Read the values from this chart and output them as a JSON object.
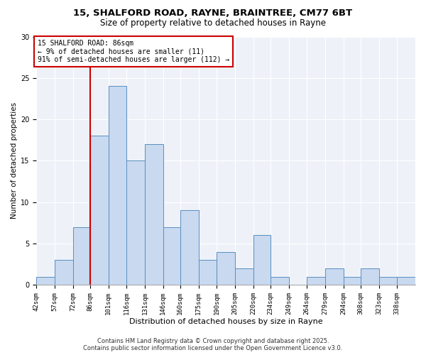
{
  "title1": "15, SHALFORD ROAD, RAYNE, BRAINTREE, CM77 6BT",
  "title2": "Size of property relative to detached houses in Rayne",
  "xlabel": "Distribution of detached houses by size in Rayne",
  "ylabel": "Number of detached properties",
  "bin_labels": [
    "42sqm",
    "57sqm",
    "72sqm",
    "86sqm",
    "101sqm",
    "116sqm",
    "131sqm",
    "146sqm",
    "160sqm",
    "175sqm",
    "190sqm",
    "205sqm",
    "220sqm",
    "234sqm",
    "249sqm",
    "264sqm",
    "279sqm",
    "294sqm",
    "308sqm",
    "323sqm",
    "338sqm"
  ],
  "bin_edges": [
    42,
    57,
    72,
    86,
    101,
    116,
    131,
    146,
    160,
    175,
    190,
    205,
    220,
    234,
    249,
    264,
    279,
    294,
    308,
    323,
    338,
    353
  ],
  "counts": [
    1,
    3,
    7,
    18,
    24,
    15,
    17,
    7,
    9,
    3,
    4,
    2,
    6,
    1,
    0,
    1,
    2,
    1,
    2,
    1,
    1
  ],
  "property_size": 86,
  "bar_color": "#c8d9f0",
  "bar_edge_color": "#5a8fc0",
  "vline_color": "#cc0000",
  "annotation_line1": "15 SHALFORD ROAD: 86sqm",
  "annotation_line2": "← 9% of detached houses are smaller (11)",
  "annotation_line3": "91% of semi-detached houses are larger (112) →",
  "annotation_box_color": "#ffffff",
  "annotation_box_edge": "#cc0000",
  "ylim": [
    0,
    30
  ],
  "yticks": [
    0,
    5,
    10,
    15,
    20,
    25,
    30
  ],
  "xlim_left": 42,
  "xlim_right": 353,
  "background_color": "#eef2f8",
  "grid_color": "#ffffff",
  "footer1": "Contains HM Land Registry data © Crown copyright and database right 2025.",
  "footer2": "Contains public sector information licensed under the Open Government Licence v3.0.",
  "title1_fontsize": 9.5,
  "title2_fontsize": 8.5,
  "xlabel_fontsize": 8,
  "ylabel_fontsize": 7.5,
  "tick_fontsize": 6.5,
  "annotation_fontsize": 7,
  "footer_fontsize": 6
}
